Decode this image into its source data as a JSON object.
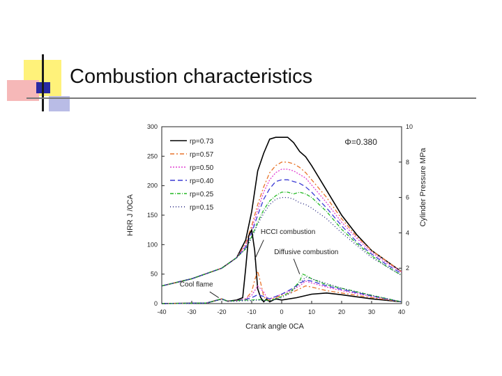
{
  "slide": {
    "title": "Combustion characteristics",
    "colors": {
      "yellow": "#fff27a",
      "pink": "#f6b8b8",
      "blue": "#2929a3",
      "lavender": "#b9bce6"
    }
  },
  "chart_data": {
    "type": "line",
    "title": "",
    "phi_label": "Φ=0.380",
    "xlabel": "Crank angle",
    "xlabel_unit": "0CA",
    "ylabel_left": "HRR   J /0CA",
    "ylabel_right": "Cylinder Pressure  MPa",
    "xlim": [
      -40,
      40
    ],
    "ylim_left": [
      0,
      300
    ],
    "ylim_right": [
      0,
      10
    ],
    "x_ticks": [
      "-40",
      "-30",
      "-20",
      "-10",
      "0",
      "10",
      "20",
      "30",
      "40"
    ],
    "y_left_ticks": [
      "0",
      "50",
      "100",
      "150",
      "200",
      "250",
      "300"
    ],
    "y_right_ticks": [
      "0",
      "2",
      "4",
      "6",
      "8",
      "10"
    ],
    "annotations": {
      "hcci": "HCCI combustion",
      "diffusive": "Diffusive combustion",
      "cool_flame": "Cool flame"
    },
    "legend_position": "top-left",
    "pressure_series": [
      {
        "name": "rp=0.73",
        "color": "#000000",
        "dash": "",
        "x": [
          -40,
          -30,
          -20,
          -15,
          -12,
          -10,
          -8,
          -6,
          -4,
          -2,
          0,
          2,
          4,
          6,
          8,
          10,
          15,
          20,
          25,
          30,
          35,
          40
        ],
        "y": [
          1.0,
          1.4,
          2.0,
          2.6,
          3.6,
          5.2,
          7.5,
          8.5,
          9.3,
          9.4,
          9.4,
          9.4,
          9.1,
          8.6,
          8.3,
          7.8,
          6.4,
          5.0,
          3.9,
          3.0,
          2.4,
          1.8
        ]
      },
      {
        "name": "rp=0.57",
        "color": "#e8742a",
        "dash": "6 3 2 3",
        "x": [
          -40,
          -30,
          -20,
          -15,
          -12,
          -10,
          -8,
          -6,
          -4,
          -2,
          0,
          2,
          4,
          6,
          8,
          10,
          15,
          20,
          25,
          30,
          35,
          40
        ],
        "y": [
          1.0,
          1.4,
          2.0,
          2.6,
          3.4,
          4.4,
          5.6,
          6.6,
          7.4,
          7.8,
          8.0,
          8.0,
          7.9,
          7.7,
          7.4,
          7.0,
          6.0,
          4.8,
          3.8,
          3.0,
          2.4,
          1.8
        ]
      },
      {
        "name": "rp=0.50",
        "color": "#e23fd0",
        "dash": "2 2",
        "x": [
          -40,
          -30,
          -20,
          -15,
          -12,
          -10,
          -8,
          -6,
          -4,
          -2,
          0,
          2,
          4,
          6,
          8,
          10,
          15,
          20,
          25,
          30,
          35,
          40
        ],
        "y": [
          1.0,
          1.4,
          2.0,
          2.6,
          3.3,
          4.2,
          5.3,
          6.3,
          7.0,
          7.4,
          7.6,
          7.6,
          7.5,
          7.3,
          7.1,
          6.7,
          5.7,
          4.6,
          3.7,
          2.9,
          2.3,
          1.8
        ]
      },
      {
        "name": "rp=0.40",
        "color": "#3a39d4",
        "dash": "7 4",
        "x": [
          -40,
          -30,
          -20,
          -15,
          -12,
          -10,
          -8,
          -6,
          -4,
          -2,
          0,
          2,
          4,
          6,
          8,
          10,
          15,
          20,
          25,
          30,
          35,
          40
        ],
        "y": [
          1.0,
          1.4,
          2.0,
          2.6,
          3.2,
          4.0,
          5.0,
          5.9,
          6.5,
          6.9,
          7.0,
          7.0,
          6.9,
          6.8,
          6.6,
          6.3,
          5.4,
          4.4,
          3.5,
          2.8,
          2.2,
          1.7
        ]
      },
      {
        "name": "rp=0.25",
        "color": "#22b822",
        "dash": "5 2 1 2",
        "x": [
          -40,
          -30,
          -20,
          -15,
          -12,
          -10,
          -8,
          -6,
          -4,
          -2,
          0,
          2,
          4,
          6,
          8,
          10,
          15,
          20,
          25,
          30,
          35,
          40
        ],
        "y": [
          1.0,
          1.4,
          2.0,
          2.6,
          3.1,
          3.8,
          4.6,
          5.3,
          5.8,
          6.1,
          6.3,
          6.3,
          6.2,
          6.3,
          6.2,
          6.0,
          5.2,
          4.2,
          3.4,
          2.7,
          2.1,
          1.6
        ]
      },
      {
        "name": "rp=0.15",
        "color": "#1a1a7a",
        "dash": "1 3",
        "x": [
          -40,
          -30,
          -20,
          -15,
          -12,
          -10,
          -8,
          -6,
          -4,
          -2,
          0,
          2,
          4,
          6,
          8,
          10,
          15,
          20,
          25,
          30,
          35,
          40
        ],
        "y": [
          1.0,
          1.4,
          2.0,
          2.6,
          3.1,
          3.7,
          4.5,
          5.1,
          5.6,
          5.9,
          6.0,
          6.0,
          5.9,
          5.7,
          5.6,
          5.4,
          4.8,
          4.0,
          3.3,
          2.6,
          2.1,
          1.6
        ]
      }
    ],
    "hrr_series": [
      {
        "name": "rp=0.73",
        "color": "#000000",
        "dash": "",
        "x": [
          -40,
          -25,
          -20,
          -18,
          -15,
          -13,
          -12,
          -11,
          -10,
          -9,
          -8,
          -7,
          -6,
          -5,
          -4,
          -2,
          0,
          5,
          10,
          15,
          20,
          30,
          40
        ],
        "y": [
          0,
          1,
          8,
          4,
          6,
          10,
          60,
          115,
          125,
          90,
          25,
          10,
          3,
          8,
          3,
          8,
          6,
          10,
          16,
          18,
          15,
          8,
          3
        ]
      },
      {
        "name": "rp=0.57",
        "color": "#e8742a",
        "dash": "6 3 2 3",
        "x": [
          -40,
          -25,
          -20,
          -18,
          -15,
          -12,
          -10,
          -9,
          -8,
          -7,
          -6,
          -5,
          -4,
          -2,
          0,
          3,
          6,
          8,
          10,
          15,
          20,
          30,
          40
        ],
        "y": [
          0,
          1,
          8,
          4,
          5,
          8,
          20,
          40,
          55,
          35,
          12,
          6,
          6,
          10,
          14,
          18,
          25,
          30,
          28,
          22,
          18,
          10,
          3
        ]
      },
      {
        "name": "rp=0.50",
        "color": "#e23fd0",
        "dash": "2 2",
        "x": [
          -40,
          -25,
          -20,
          -18,
          -15,
          -12,
          -10,
          -8,
          -6,
          -5,
          -4,
          -2,
          0,
          3,
          6,
          8,
          10,
          15,
          20,
          30,
          40
        ],
        "y": [
          0,
          1,
          8,
          4,
          5,
          8,
          14,
          30,
          20,
          10,
          8,
          12,
          16,
          22,
          30,
          38,
          35,
          28,
          22,
          12,
          3
        ]
      },
      {
        "name": "rp=0.40",
        "color": "#3a39d4",
        "dash": "7 4",
        "x": [
          -40,
          -25,
          -20,
          -18,
          -15,
          -12,
          -10,
          -8,
          -6,
          -4,
          -2,
          0,
          3,
          6,
          8,
          10,
          15,
          20,
          30,
          40
        ],
        "y": [
          0,
          1,
          8,
          4,
          5,
          7,
          10,
          15,
          12,
          8,
          12,
          16,
          24,
          34,
          40,
          38,
          30,
          24,
          13,
          3
        ]
      },
      {
        "name": "rp=0.25",
        "color": "#22b822",
        "dash": "5 2 1 2",
        "x": [
          -40,
          -25,
          -20,
          -18,
          -15,
          -12,
          -10,
          -8,
          -6,
          -4,
          -2,
          0,
          3,
          6,
          7,
          8,
          10,
          15,
          20,
          30,
          40
        ],
        "y": [
          0,
          1,
          8,
          4,
          5,
          6,
          6,
          7,
          6,
          5,
          8,
          12,
          20,
          38,
          50,
          48,
          42,
          32,
          26,
          14,
          3
        ]
      },
      {
        "name": "rp=0.15",
        "color": "#1a1a7a",
        "dash": "1 3",
        "x": [
          -40,
          -25,
          -20,
          -18,
          -15,
          -12,
          -10,
          -8,
          -6,
          -4,
          -2,
          0,
          3,
          6,
          8,
          10,
          15,
          20,
          30,
          40
        ],
        "y": [
          0,
          1,
          7,
          4,
          4,
          5,
          5,
          6,
          5,
          5,
          7,
          10,
          18,
          35,
          45,
          42,
          34,
          26,
          14,
          3
        ]
      }
    ]
  }
}
